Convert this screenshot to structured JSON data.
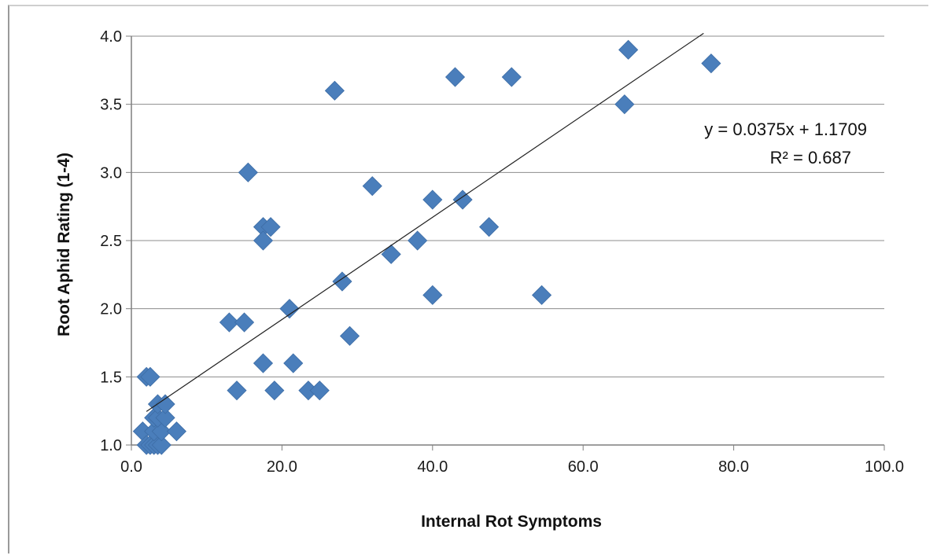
{
  "chart_data": {
    "type": "scatter",
    "title": "",
    "xlabel": "Internal Rot Symptoms",
    "ylabel": "Root Aphid Rating (1-4)",
    "xlim": [
      0,
      100
    ],
    "ylim": [
      1.0,
      4.0
    ],
    "x_ticks": [
      "0.0",
      "20.0",
      "40.0",
      "60.0",
      "80.0",
      "100.0"
    ],
    "y_ticks": [
      "1.0",
      "1.5",
      "2.0",
      "2.5",
      "3.0",
      "3.5",
      "4.0"
    ],
    "grid": "horizontal",
    "marker": "diamond",
    "marker_color": "#4a7ebb",
    "series": [
      {
        "points": [
          [
            1.5,
            1.1
          ],
          [
            2.0,
            1.5
          ],
          [
            2.5,
            1.5
          ],
          [
            2.0,
            1.0
          ],
          [
            2.5,
            1.0
          ],
          [
            3.0,
            1.0
          ],
          [
            3.5,
            1.0
          ],
          [
            4.0,
            1.0
          ],
          [
            3.0,
            1.1
          ],
          [
            4.0,
            1.1
          ],
          [
            3.0,
            1.2
          ],
          [
            3.5,
            1.2
          ],
          [
            4.5,
            1.2
          ],
          [
            3.5,
            1.3
          ],
          [
            4.5,
            1.3
          ],
          [
            6.0,
            1.1
          ],
          [
            13.0,
            1.9
          ],
          [
            14.0,
            1.4
          ],
          [
            15.0,
            1.9
          ],
          [
            15.5,
            3.0
          ],
          [
            17.5,
            2.6
          ],
          [
            17.5,
            2.5
          ],
          [
            17.5,
            1.6
          ],
          [
            18.5,
            2.6
          ],
          [
            19.0,
            1.4
          ],
          [
            21.0,
            2.0
          ],
          [
            21.5,
            1.6
          ],
          [
            23.5,
            1.4
          ],
          [
            25.0,
            1.4
          ],
          [
            27.0,
            3.6
          ],
          [
            28.0,
            2.2
          ],
          [
            29.0,
            1.8
          ],
          [
            32.0,
            2.9
          ],
          [
            34.5,
            2.4
          ],
          [
            38.0,
            2.5
          ],
          [
            40.0,
            2.8
          ],
          [
            40.0,
            2.1
          ],
          [
            43.0,
            3.7
          ],
          [
            44.0,
            2.8
          ],
          [
            47.5,
            2.6
          ],
          [
            50.5,
            3.7
          ],
          [
            54.5,
            2.1
          ],
          [
            65.5,
            3.5
          ],
          [
            66.0,
            3.9
          ],
          [
            77.0,
            3.8
          ]
        ]
      }
    ],
    "trendline": {
      "slope": 0.0375,
      "intercept": 1.1709,
      "x_range": [
        2.0,
        76.0
      ],
      "color": "#222222",
      "equation_text": "y = 0.0375x + 1.1709",
      "r2_text": "R² = 0.687"
    }
  }
}
